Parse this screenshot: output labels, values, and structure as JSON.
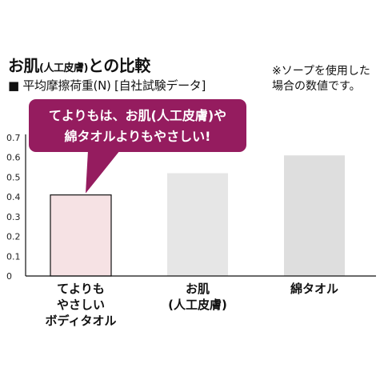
{
  "title": {
    "main": "お肌",
    "paren": "(人工皮膚)",
    "rest": "との比較"
  },
  "subtitle": "■ 平均摩擦荷重(N) [自社試験データ]",
  "note": [
    "※ソープを使用した",
    "場合の数値です。"
  ],
  "callout": {
    "lines": [
      "てよりもは、お肌(人工皮膚)や",
      "綿タオルよりもやさしい!"
    ],
    "color": "#951c5f"
  },
  "chart_data": {
    "type": "bar",
    "title": "平均摩擦荷重(N)",
    "categories": [
      [
        "てよりも",
        "やさしい",
        "ボディタオル"
      ],
      [
        "お肌",
        "(人工皮膚)"
      ],
      [
        "綿タオル"
      ]
    ],
    "values": [
      0.41,
      0.52,
      0.61
    ],
    "colors": [
      "#f6e2e4",
      "#e6e6e6",
      "#dedede"
    ],
    "ylim": [
      0,
      0.7
    ],
    "yticks": [
      "0",
      "0.1",
      "0.2",
      "0.3",
      "0.4",
      "0.5",
      "0.6",
      "0.7"
    ],
    "highlight_index": 0
  }
}
